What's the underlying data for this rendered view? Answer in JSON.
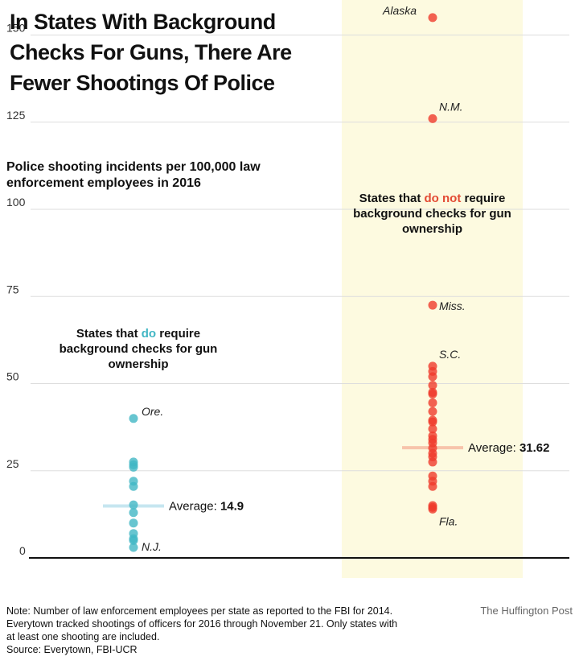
{
  "title": "In States With Background Checks For Guns, There Are Fewer Shootings Of Police",
  "subtitle": "Police shooting incidents per 100,000 law enforcement employees in 2016",
  "groups": {
    "require": {
      "pre": "States that ",
      "highlight": "do",
      "post": " require background checks for gun ownership"
    },
    "not_require": {
      "pre": "States that ",
      "highlight": "do not",
      "post": " require background checks for gun ownership"
    }
  },
  "notes": [
    "Note: Number of law enforcement employees per state as reported to the FBI for 2014.",
    "Everytown tracked shootings of officers for 2016 through November 21. Only states with",
    "at least one shooting are included.",
    "Source: Everytown, FBI-UCR"
  ],
  "credit": "The Huffington Post",
  "colors": {
    "require": "#41b6c4",
    "not_require": "#ef3b2c",
    "highlight_band": "#fdfae0",
    "require_avg": "#c6e6f0",
    "not_require_avg": "#f7c4ab"
  },
  "chart_data": {
    "type": "scatter",
    "ylim": [
      0,
      160
    ],
    "yticks": [
      0,
      25,
      50,
      75,
      100,
      125,
      150
    ],
    "grid": true,
    "series": [
      {
        "name": "States that do require background checks for gun ownership",
        "values": [
          40,
          27.5,
          26.7,
          26,
          22,
          20.5,
          15.2,
          13,
          10,
          7,
          5.5,
          5,
          3
        ],
        "average": 14.9,
        "average_label": "Average:",
        "average_value": "14.9",
        "labels": [
          {
            "text": "Ore.",
            "value": 40
          },
          {
            "text": "N.J.",
            "value": 3
          }
        ]
      },
      {
        "name": "States that do not require background checks for gun ownership",
        "values": [
          155,
          126,
          72.5,
          55,
          53.5,
          52,
          49.5,
          47.5,
          47,
          44.5,
          42,
          39.5,
          39,
          37,
          35,
          34,
          33,
          31.5,
          30,
          29,
          27.5,
          23.5,
          22,
          20.5,
          15,
          14.5,
          14
        ],
        "average": 31.62,
        "average_label": "Average:",
        "average_value": "31.62",
        "labels": [
          {
            "text": "Alaska",
            "value": 155
          },
          {
            "text": "N.M.",
            "value": 126
          },
          {
            "text": "Miss.",
            "value": 72.5
          },
          {
            "text": "S.C.",
            "value": 55
          },
          {
            "text": "Fla.",
            "value": 14
          }
        ]
      }
    ]
  }
}
